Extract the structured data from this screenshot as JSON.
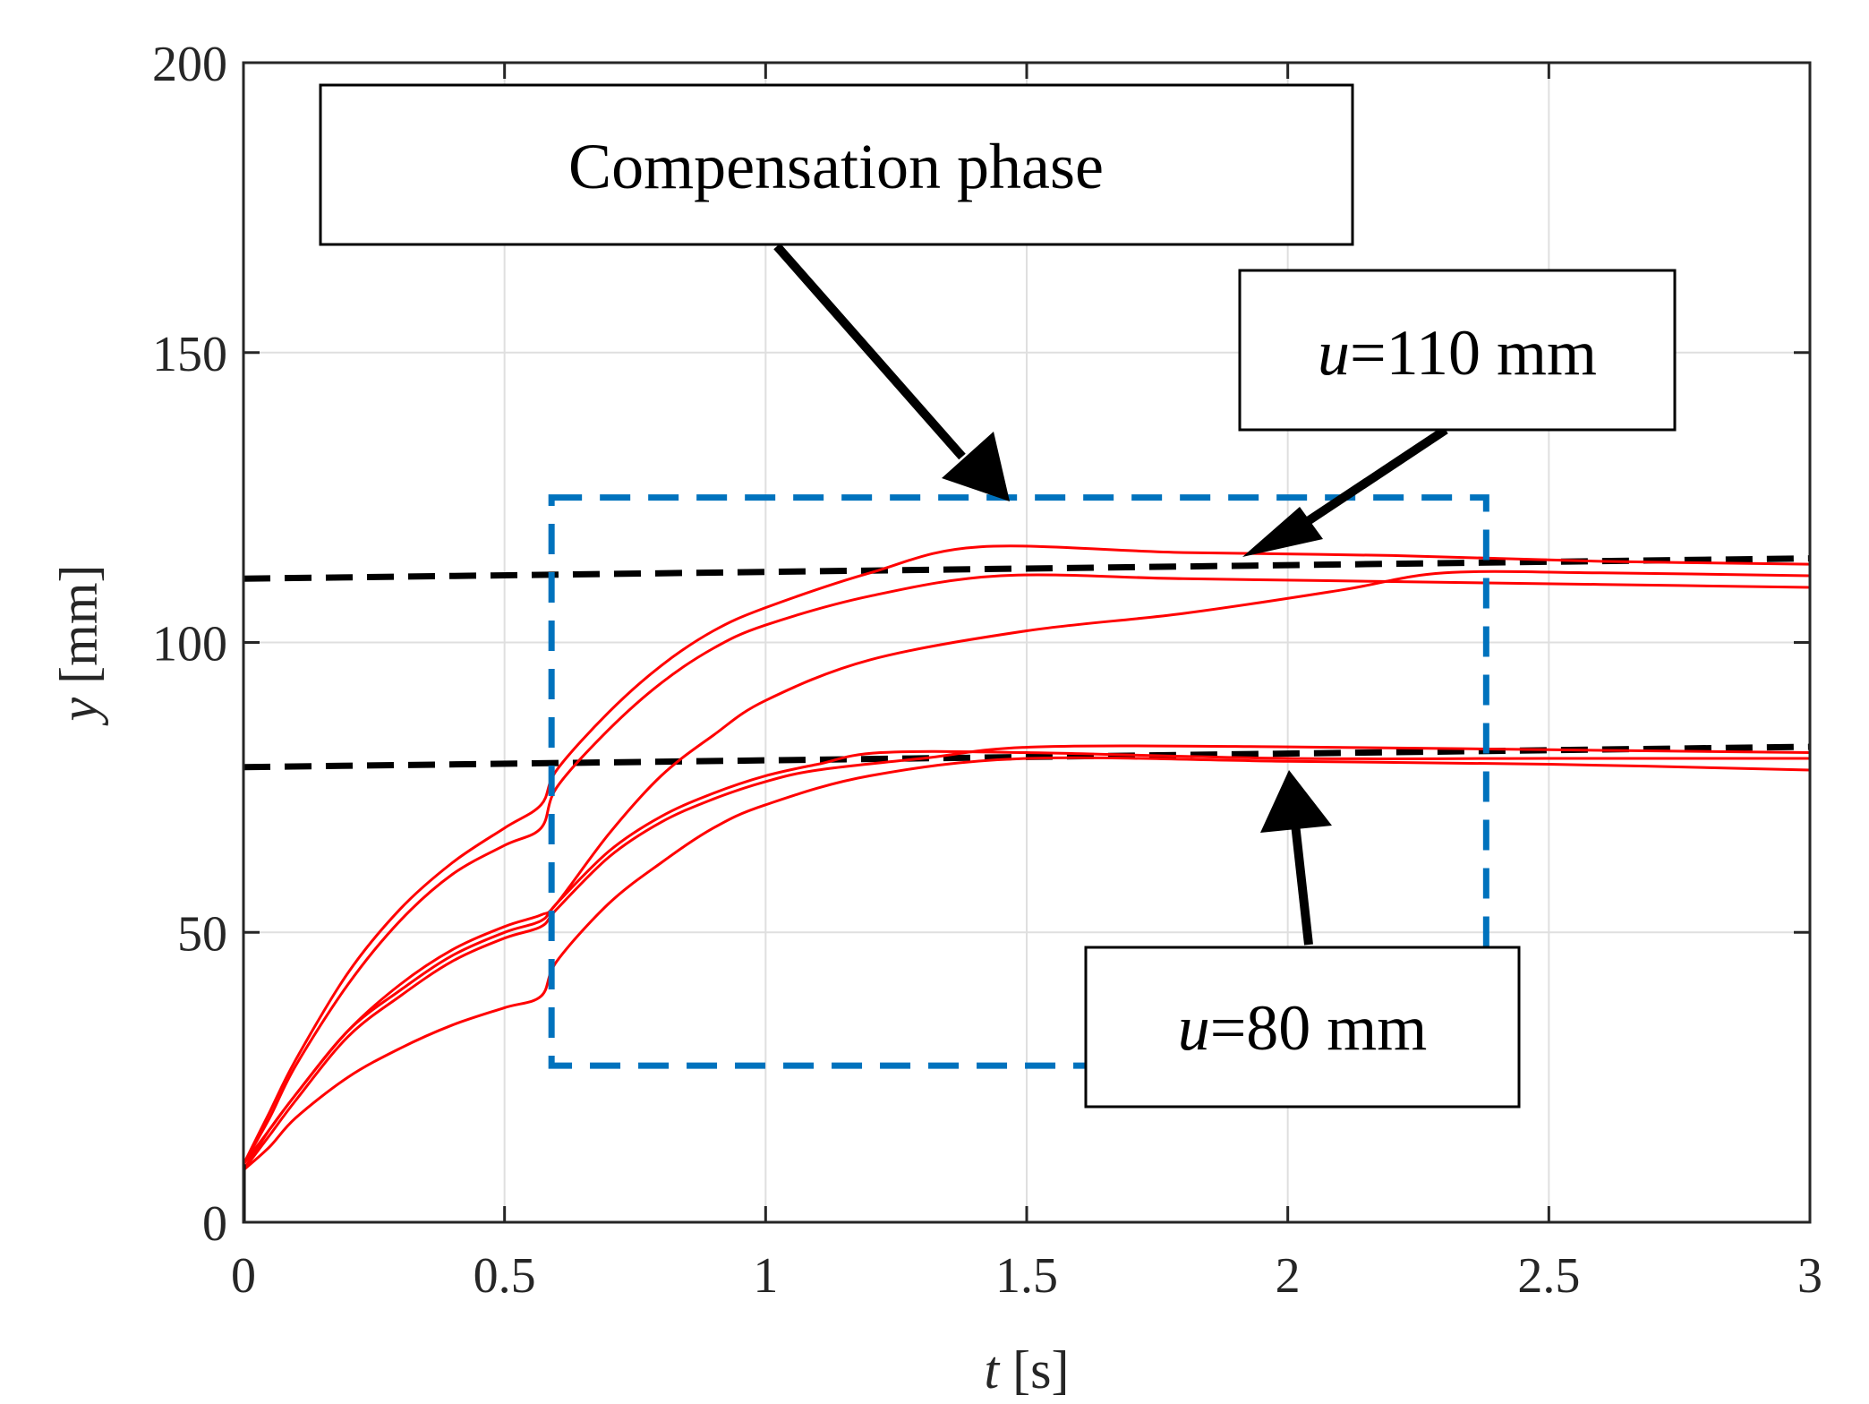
{
  "chart_data": {
    "type": "line",
    "xlabel": {
      "var": "t",
      "unit": " [s]"
    },
    "ylabel": {
      "var": "y",
      "unit": " [mm]"
    },
    "xlim": [
      0,
      3
    ],
    "ylim": [
      0,
      200
    ],
    "xticks": [
      0,
      0.5,
      1,
      1.5,
      2,
      2.5,
      3
    ],
    "xtick_labels": [
      "0",
      "0.5",
      "1",
      "1.5",
      "2",
      "2.5",
      "3"
    ],
    "yticks": [
      0,
      50,
      100,
      150,
      200
    ],
    "ytick_labels": [
      "0",
      "50",
      "100",
      "150",
      "200"
    ],
    "grid": true,
    "colors": {
      "response": "#ff0000",
      "reference": "#000000",
      "region": "#0072bd",
      "axes": "#262626",
      "grid": "#dfdfdf"
    },
    "reference_series": [
      {
        "name": "u=110 mm",
        "x": [
          0,
          3
        ],
        "y": [
          111,
          114.5
        ]
      },
      {
        "name": "u=80 mm",
        "x": [
          0,
          3
        ],
        "y": [
          78.5,
          82
        ]
      }
    ],
    "response_series": [
      {
        "name": "response 1",
        "x": [
          0,
          0.05,
          0.1,
          0.2,
          0.3,
          0.4,
          0.5,
          0.57,
          0.6,
          0.7,
          0.8,
          0.9,
          1.0,
          1.2,
          1.41,
          1.8,
          2.2,
          2.6,
          3.0
        ],
        "y": [
          10,
          19,
          28,
          43,
          54,
          62,
          68,
          72,
          78,
          88,
          96,
          102,
          106,
          112,
          116.5,
          115.5,
          115,
          114,
          113.5
        ]
      },
      {
        "name": "response 2",
        "x": [
          0,
          0.05,
          0.1,
          0.2,
          0.3,
          0.4,
          0.5,
          0.57,
          0.6,
          0.7,
          0.8,
          0.9,
          1.0,
          1.2,
          1.45,
          1.8,
          2.2,
          2.6,
          3.0
        ],
        "y": [
          10,
          18,
          27,
          41,
          52,
          60,
          65,
          68,
          75,
          85,
          93,
          99,
          103,
          108,
          111.5,
          111,
          110.5,
          110,
          109.5
        ]
      },
      {
        "name": "response 3",
        "x": [
          0,
          0.05,
          0.1,
          0.2,
          0.3,
          0.4,
          0.5,
          0.57,
          0.6,
          0.7,
          0.8,
          0.9,
          1.0,
          1.2,
          1.5,
          1.8,
          2.1,
          2.3,
          2.6,
          3.0
        ],
        "y": [
          10,
          16,
          22,
          33,
          41,
          47,
          51,
          53,
          55,
          67,
          77,
          84,
          90,
          97,
          102,
          105,
          109,
          112,
          112,
          111.5
        ]
      },
      {
        "name": "response 4",
        "x": [
          0,
          0.05,
          0.1,
          0.2,
          0.3,
          0.4,
          0.5,
          0.57,
          0.6,
          0.7,
          0.8,
          0.9,
          1.0,
          1.1,
          1.22,
          1.5,
          2.0,
          2.5,
          3.0
        ],
        "y": [
          9,
          16,
          22,
          33,
          40,
          46,
          50,
          52,
          55,
          64,
          70,
          74,
          77,
          79,
          81,
          81,
          80,
          80,
          80
        ]
      },
      {
        "name": "response 5",
        "x": [
          0,
          0.05,
          0.1,
          0.2,
          0.3,
          0.4,
          0.5,
          0.57,
          0.6,
          0.7,
          0.8,
          0.9,
          1.0,
          1.1,
          1.3,
          1.52,
          2.0,
          2.5,
          3.0
        ],
        "y": [
          9,
          15,
          21,
          32,
          39,
          45,
          49,
          51,
          54,
          63,
          69,
          73,
          76,
          78,
          80,
          82,
          82,
          81.5,
          81
        ]
      },
      {
        "name": "response 6",
        "x": [
          0,
          0.05,
          0.1,
          0.2,
          0.3,
          0.4,
          0.5,
          0.57,
          0.6,
          0.7,
          0.8,
          0.9,
          1.0,
          1.2,
          1.5,
          2.0,
          2.5,
          3.0
        ],
        "y": [
          9,
          13,
          18,
          25,
          30,
          34,
          37,
          39,
          45,
          55,
          62,
          68,
          72,
          77,
          80,
          79.5,
          79,
          78
        ]
      }
    ],
    "compensation_region": {
      "x": [
        0.59,
        2.38
      ],
      "y": [
        27,
        125
      ]
    },
    "annotations": [
      {
        "id": "compensation",
        "text": "Compensation phase",
        "var": "",
        "arrow_target": [
          1.47,
          125
        ]
      },
      {
        "id": "u110",
        "var": "u",
        "text": "=110 mm",
        "arrow_target": [
          1.91,
          114
        ]
      },
      {
        "id": "u80",
        "var": "u",
        "text": "=80 mm",
        "arrow_target": [
          2.0,
          83
        ]
      }
    ]
  }
}
